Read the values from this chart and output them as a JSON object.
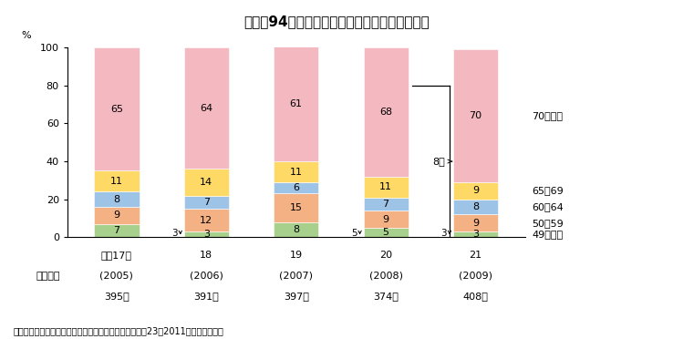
{
  "title": "図２－94　年齢別農作業事故の発生件数の推移",
  "years_short": [
    "平成17年",
    "18",
    "19",
    "20",
    "21"
  ],
  "years_en": [
    "(2005)",
    "(2006)",
    "(2007)",
    "(2008)",
    "(2009)"
  ],
  "years_count": [
    "395件",
    "391件",
    "397件",
    "374件",
    "408件"
  ],
  "segments": {
    "49歳以下": [
      7,
      3,
      8,
      5,
      3
    ],
    "50〜59": [
      9,
      12,
      15,
      9,
      9
    ],
    "60〜64": [
      8,
      7,
      6,
      7,
      8
    ],
    "65〜69": [
      11,
      14,
      11,
      11,
      9
    ],
    "70歳以上": [
      65,
      64,
      61,
      68,
      70
    ]
  },
  "colors": {
    "49歳以下": "#a8d08d",
    "50〜59": "#f4b183",
    "60〜64": "#9dc3e6",
    "65〜69": "#ffd966",
    "70歳以上": "#f4b8c1"
  },
  "segment_order": [
    "49歳以下",
    "50〜59",
    "60〜64",
    "65〜69",
    "70歳以上"
  ],
  "legend_items": [
    {
      "label": "70歳以上",
      "color": "#f4b8c1"
    },
    {
      "label": "65〜69",
      "color": "#ffd966"
    },
    {
      "label": "60〜64",
      "color": "#9dc3e6"
    },
    {
      "label": "50〜59",
      "color": "#f4b183"
    },
    {
      "label": "49歳以下",
      "color": "#a8d08d"
    }
  ],
  "source": "資料：農林水産省「農作業事故調査結果報告書」（平成23（2011）年５月公表）",
  "bg_color": "#ffffff",
  "title_bg": "#d9e8b0",
  "bar_width": 0.5,
  "ylim": [
    0,
    100
  ],
  "yticks": [
    0,
    20,
    40,
    60,
    80,
    100
  ],
  "small_annotations": [
    {
      "bar_idx": 1,
      "value": "3"
    },
    {
      "bar_idx": 3,
      "value": "5"
    },
    {
      "bar_idx": 4,
      "value": "3"
    }
  ]
}
